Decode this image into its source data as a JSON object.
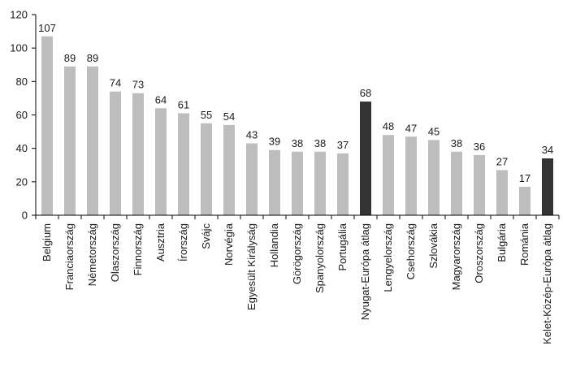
{
  "chart_data": {
    "type": "bar",
    "title": "",
    "xlabel": "",
    "ylabel": "",
    "ylim": [
      0,
      120
    ],
    "yticks": [
      0,
      20,
      40,
      60,
      80,
      100,
      120
    ],
    "grid": false,
    "colors": {
      "default": "#bdbdbd",
      "highlight": "#333333"
    },
    "categories": [
      "Belgium",
      "Franciaország",
      "Németország",
      "Olaszország",
      "Finnország",
      "Ausztria",
      "Írország",
      "Svájc",
      "Norvégia",
      "Egyesült Királyság",
      "Hollandia",
      "Görögország",
      "Spanyolország",
      "Portugália",
      "Nyugat-Európa átlag",
      "Lengyelország",
      "Csehország",
      "Szlovákia",
      "Magyarország",
      "Oroszország",
      "Bulgária",
      "Románia",
      "Kelet-Közép-Európa átlag"
    ],
    "values": [
      107,
      89,
      89,
      74,
      73,
      64,
      61,
      55,
      54,
      43,
      39,
      38,
      38,
      37,
      68,
      48,
      47,
      45,
      38,
      36,
      27,
      17,
      34
    ],
    "highlighted_categories": [
      "Nyugat-Európa átlag",
      "Kelet-Közép-Európa átlag"
    ]
  }
}
